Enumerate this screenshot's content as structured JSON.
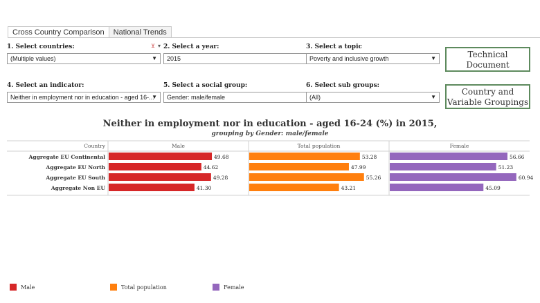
{
  "tabs": [
    "Cross Country Comparison",
    "National Trends"
  ],
  "filters": {
    "countries": {
      "label": "1. Select countries:",
      "value": "(Multiple values)"
    },
    "year": {
      "label": "2. Select a year:",
      "value": "2015"
    },
    "topic": {
      "label": "3. Select a topic",
      "value": "Poverty and inclusive growth"
    },
    "indicator": {
      "label": "4. Select an indicator:",
      "value": "Neither in employment nor in education - aged 16-..."
    },
    "social_group": {
      "label": "5. Select a social group:",
      "value": "Gender: male/female"
    },
    "sub_groups": {
      "label": "6. Select sub groups:",
      "value": "(All)"
    }
  },
  "buttons": {
    "technical_document": {
      "line1": "Technical",
      "line2": "Document"
    },
    "country_groupings": {
      "line1": "Country and",
      "line2": "Variable Groupings"
    }
  },
  "colors": {
    "male": "#d62728",
    "total": "#ff7f0e",
    "female": "#9467bd"
  },
  "chart_data": {
    "type": "bar",
    "orientation": "horizontal",
    "title": "Neither in employment nor in education - aged 16-24 (%) in 2015,",
    "subtitle": "grouping by Gender: male/female",
    "row_header": "Country",
    "categories": [
      "Aggregate EU Continental",
      "Aggregate EU North",
      "Aggregate EU South",
      "Aggregate Non EU"
    ],
    "xlim": [
      0,
      67
    ],
    "series": [
      {
        "name": "Male",
        "key": "male",
        "values": [
          49.68,
          44.62,
          49.28,
          41.3
        ],
        "labels": [
          "49.68",
          "44.62",
          "49.28",
          "41.30"
        ]
      },
      {
        "name": "Total population",
        "key": "total",
        "values": [
          53.28,
          47.99,
          55.26,
          43.21
        ],
        "labels": [
          "53.28",
          "47.99",
          "55.26",
          "43.21"
        ]
      },
      {
        "name": "Female",
        "key": "female",
        "values": [
          56.66,
          51.23,
          60.94,
          45.09
        ],
        "labels": [
          "56.66",
          "51.23",
          "60.94",
          "45.09"
        ]
      }
    ],
    "legend": [
      "Male",
      "Total population",
      "Female"
    ]
  }
}
